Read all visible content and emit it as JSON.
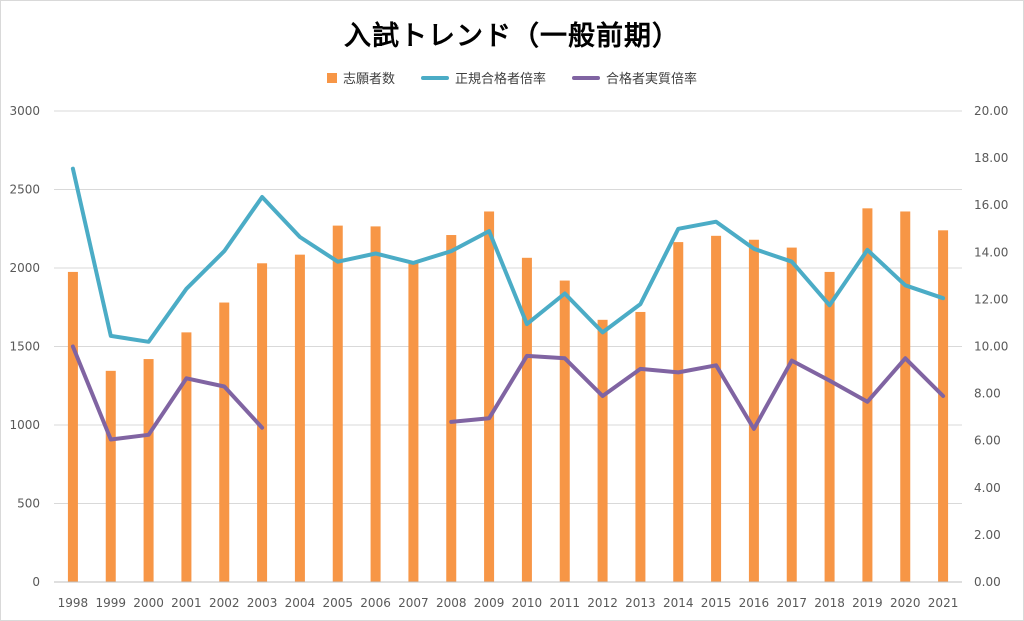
{
  "chart_data": {
    "type": "bar+line",
    "title": "入試トレンド（一般前期）",
    "categories": [
      "1998",
      "1999",
      "2000",
      "2001",
      "2002",
      "2003",
      "2004",
      "2005",
      "2006",
      "2007",
      "2008",
      "2009",
      "2010",
      "2011",
      "2012",
      "2013",
      "2014",
      "2015",
      "2016",
      "2017",
      "2018",
      "2019",
      "2020",
      "2021"
    ],
    "left_axis": {
      "min": 0,
      "max": 3000,
      "step": 500,
      "ticks": [
        "0",
        "500",
        "1000",
        "1500",
        "2000",
        "2500",
        "3000"
      ]
    },
    "right_axis": {
      "min": 0,
      "max": 20,
      "step": 2,
      "ticks": [
        "0.00",
        "2.00",
        "4.00",
        "6.00",
        "8.00",
        "10.00",
        "12.00",
        "14.00",
        "16.00",
        "18.00",
        "20.00"
      ]
    },
    "grid": true,
    "legend_position": "top",
    "series": [
      {
        "name": "志願者数",
        "kind": "bar",
        "axis": "left",
        "color": "#F79646",
        "values": [
          1975,
          1345,
          1420,
          1590,
          1780,
          2030,
          2085,
          2270,
          2265,
          2040,
          2210,
          2360,
          2065,
          1920,
          1670,
          1720,
          2165,
          2205,
          2180,
          2130,
          1975,
          2380,
          2360,
          2240
        ]
      },
      {
        "name": "正規合格者倍率",
        "kind": "line",
        "axis": "right",
        "color": "#4BACC6",
        "values": [
          17.55,
          10.45,
          10.2,
          12.45,
          14.05,
          16.35,
          14.65,
          13.6,
          13.95,
          13.55,
          14.05,
          14.9,
          10.95,
          12.25,
          10.6,
          11.8,
          15.0,
          15.3,
          14.15,
          13.6,
          11.75,
          14.1,
          12.6,
          12.05
        ]
      },
      {
        "name": "合格者実質倍率",
        "kind": "line",
        "axis": "right",
        "color": "#8064A2",
        "values": [
          10.0,
          6.05,
          6.25,
          8.65,
          8.3,
          6.55,
          null,
          null,
          null,
          null,
          6.8,
          6.95,
          9.6,
          9.5,
          7.9,
          9.05,
          8.9,
          9.2,
          6.5,
          9.4,
          8.55,
          7.65,
          9.5,
          7.9
        ]
      }
    ]
  }
}
